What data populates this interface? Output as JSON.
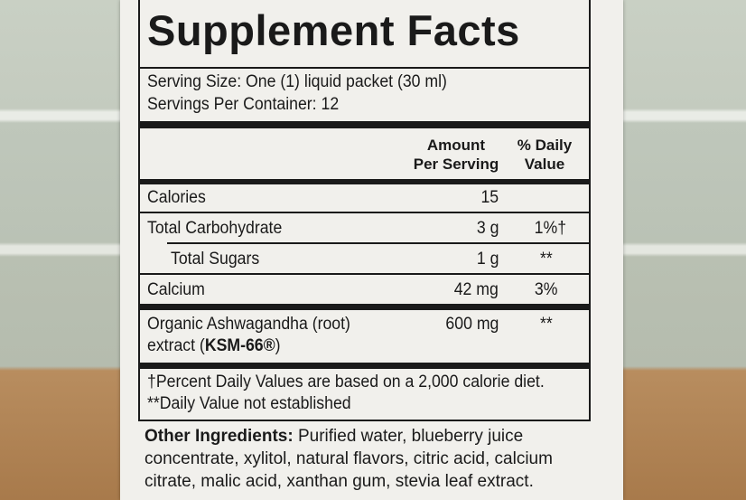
{
  "title": "Supplement Facts",
  "serving_size": "Serving Size: One (1) liquid packet (30 ml)",
  "servings_per_container": "Servings Per Container: 12",
  "headers": {
    "amount_1": "Amount",
    "amount_2": "Per Serving",
    "dv_1": "% Daily",
    "dv_2": "Value"
  },
  "rows": [
    {
      "name": "Calories",
      "amount": "15",
      "dv": ""
    },
    {
      "name": "Total Carbohydrate",
      "amount": "3 g",
      "dv": "1%†"
    },
    {
      "name": "Total Sugars",
      "amount": "1 g",
      "dv": "**"
    },
    {
      "name": "Calcium",
      "amount": "42 mg",
      "dv": "3%"
    },
    {
      "name": "Organic Ashwagandha (root)",
      "name_2": "extract (",
      "brand": "KSM-66®",
      "name_3": ")",
      "amount": "600 mg",
      "dv": "**"
    }
  ],
  "footnotes": [
    "†Percent Daily Values are based on a 2,000 calorie diet.",
    "**Daily Value not established"
  ],
  "other_ingredients": {
    "label": "Other Ingredients:",
    "text": " Purified water, blueberry juice concentrate, xylitol, natural flavors, citric acid, calcium citrate, malic acid, xanthan gum, stevia leaf extract."
  }
}
